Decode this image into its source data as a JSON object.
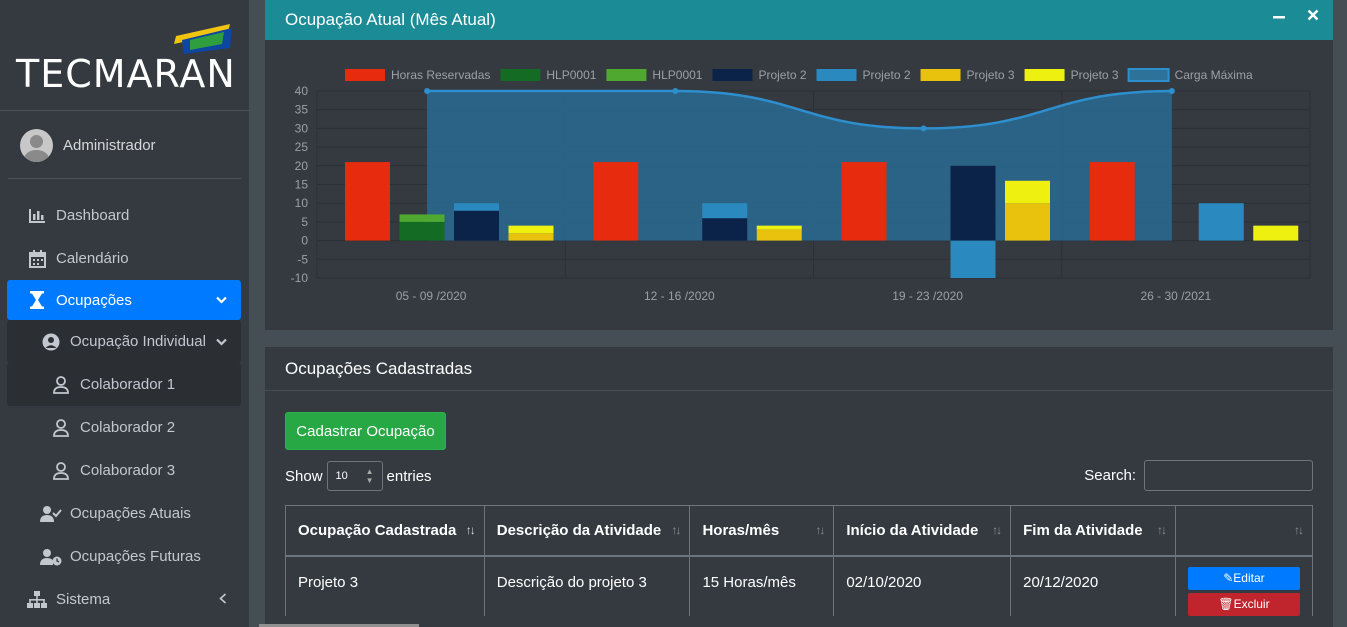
{
  "brand": {
    "name": "TECMARAN"
  },
  "user": {
    "name": "Administrador"
  },
  "sidebar": {
    "items": [
      {
        "label": "Dashboard",
        "icon": "bar-chart-icon"
      },
      {
        "label": "Calendário",
        "icon": "calendar-icon"
      },
      {
        "label": "Ocupações",
        "icon": "hourglass-icon",
        "active": true
      },
      {
        "label": "Ocupação Individual",
        "icon": "user-circle-icon"
      },
      {
        "label": "Colaborador 1",
        "icon": "user-icon"
      },
      {
        "label": "Colaborador 2",
        "icon": "user-icon"
      },
      {
        "label": "Colaborador 3",
        "icon": "user-icon"
      },
      {
        "label": "Ocupações Atuais",
        "icon": "user-check-icon"
      },
      {
        "label": "Ocupações Futuras",
        "icon": "user-clock-icon"
      },
      {
        "label": "Sistema",
        "icon": "sitemap-icon"
      }
    ]
  },
  "chart_panel": {
    "title": "Ocupação Atual (Mês Atual)"
  },
  "chart_data": {
    "type": "bar",
    "categories": [
      "05 - 09 /2020",
      "12 - 16 /2020",
      "19 - 23 /2020",
      "26 - 30 /2021"
    ],
    "ylim": [
      -10,
      40
    ],
    "yticks": [
      40,
      35,
      30,
      25,
      20,
      15,
      10,
      5,
      0,
      -5,
      -10
    ],
    "series": [
      {
        "name": "Horas Reservadas",
        "color": "#e62b0e",
        "values": [
          21,
          21,
          21,
          21
        ]
      },
      {
        "name": "HLP0001",
        "color": "#146b24",
        "values": [
          5,
          0,
          0,
          0
        ]
      },
      {
        "name": "HLP0001",
        "color": "#4fa82f",
        "values": [
          2,
          0,
          0,
          0
        ]
      },
      {
        "name": "Projeto 2",
        "color": "#0b2249",
        "values": [
          8,
          6,
          20,
          0
        ]
      },
      {
        "name": "Projeto 2",
        "color": "#2a8abf",
        "values": [
          2,
          4,
          -10,
          10
        ]
      },
      {
        "name": "Projeto 3",
        "color": "#e8c20d",
        "values": [
          2,
          3,
          10,
          0
        ]
      },
      {
        "name": "Projeto 3",
        "color": "#eef010",
        "values": [
          2,
          1,
          6,
          4
        ]
      },
      {
        "name": "Carga Máxima",
        "type": "area",
        "color": "#2a8abf",
        "values": [
          40,
          40,
          30,
          40
        ]
      }
    ]
  },
  "list_panel": {
    "title": "Ocupações Cadastradas",
    "add_button": "Cadastrar Ocupação",
    "show_label": "Show",
    "show_value": "10",
    "entries_label": "entries",
    "search_label": "Search:"
  },
  "table": {
    "headers": [
      "Ocupação Cadastrada",
      "Descrição da Atividade",
      "Horas/mês",
      "Início da Atividade",
      "Fim da Atividade",
      ""
    ],
    "rows": [
      [
        "Projeto 3",
        "Descrição do projeto 3",
        "15 Horas/mês",
        "02/10/2020",
        "20/12/2020"
      ]
    ],
    "edit_label": "Editar",
    "delete_label": "Excluir"
  }
}
